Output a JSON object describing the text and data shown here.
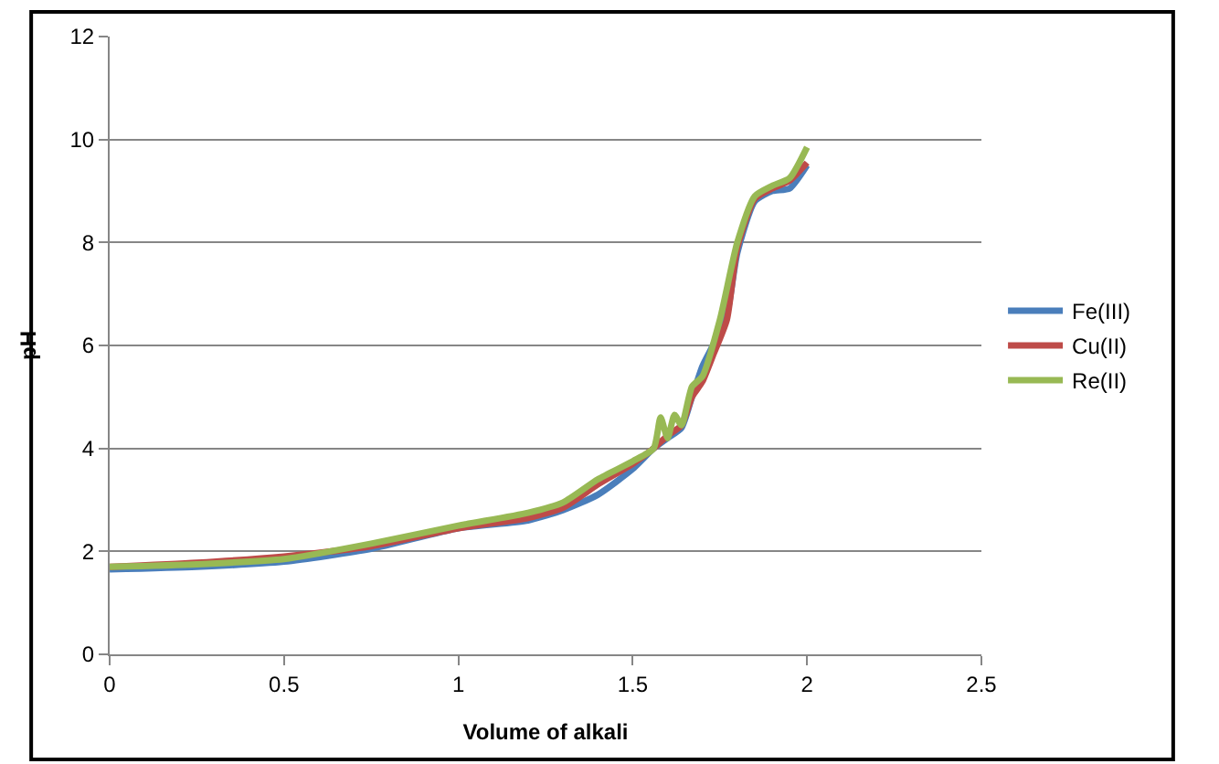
{
  "chart_data": {
    "type": "line",
    "xlabel": "Volume of alkali",
    "ylabel": "pH",
    "xlim": [
      0,
      2.5
    ],
    "xticks": [
      0,
      0.5,
      1,
      1.5,
      2,
      2.5
    ],
    "ylim": [
      0,
      12
    ],
    "yticks": [
      0,
      2,
      4,
      6,
      8,
      10,
      12
    ],
    "grid": "y",
    "legend": "right",
    "marker": "none",
    "line_style": "solid",
    "series": [
      {
        "name": "Fe(III)",
        "color": "#4a7ebb",
        "x": [
          0,
          0.25,
          0.5,
          0.75,
          1.0,
          1.2,
          1.3,
          1.4,
          1.5,
          1.56,
          1.6,
          1.64,
          1.67,
          1.7,
          1.73,
          1.77,
          1.8,
          1.85,
          1.9,
          1.95,
          2.0
        ],
        "values": [
          1.65,
          1.7,
          1.8,
          2.05,
          2.45,
          2.6,
          2.8,
          3.1,
          3.6,
          4.0,
          4.2,
          4.4,
          5.0,
          5.6,
          6.0,
          6.6,
          7.8,
          8.8,
          9.0,
          9.05,
          9.5
        ]
      },
      {
        "name": "Cu(II)",
        "color": "#be4b48",
        "x": [
          0,
          0.25,
          0.5,
          0.75,
          1.0,
          1.2,
          1.3,
          1.4,
          1.5,
          1.56,
          1.6,
          1.64,
          1.67,
          1.7,
          1.73,
          1.77,
          1.8,
          1.85,
          1.9,
          1.95,
          2.0
        ],
        "values": [
          1.7,
          1.78,
          1.9,
          2.1,
          2.45,
          2.65,
          2.85,
          3.3,
          3.7,
          4.0,
          4.25,
          4.45,
          5.0,
          5.3,
          5.8,
          6.5,
          7.9,
          8.85,
          9.05,
          9.2,
          9.55
        ]
      },
      {
        "name": "Re(II)",
        "color": "#98b954",
        "x": [
          0,
          0.25,
          0.5,
          0.75,
          1.0,
          1.2,
          1.3,
          1.4,
          1.5,
          1.56,
          1.58,
          1.6,
          1.62,
          1.64,
          1.67,
          1.7,
          1.75,
          1.8,
          1.85,
          1.9,
          1.95,
          2.0
        ],
        "values": [
          1.7,
          1.75,
          1.85,
          2.15,
          2.5,
          2.75,
          2.95,
          3.4,
          3.75,
          4.0,
          4.6,
          4.2,
          4.65,
          4.45,
          5.2,
          5.4,
          6.5,
          8.0,
          8.9,
          9.1,
          9.25,
          9.85
        ]
      }
    ]
  }
}
